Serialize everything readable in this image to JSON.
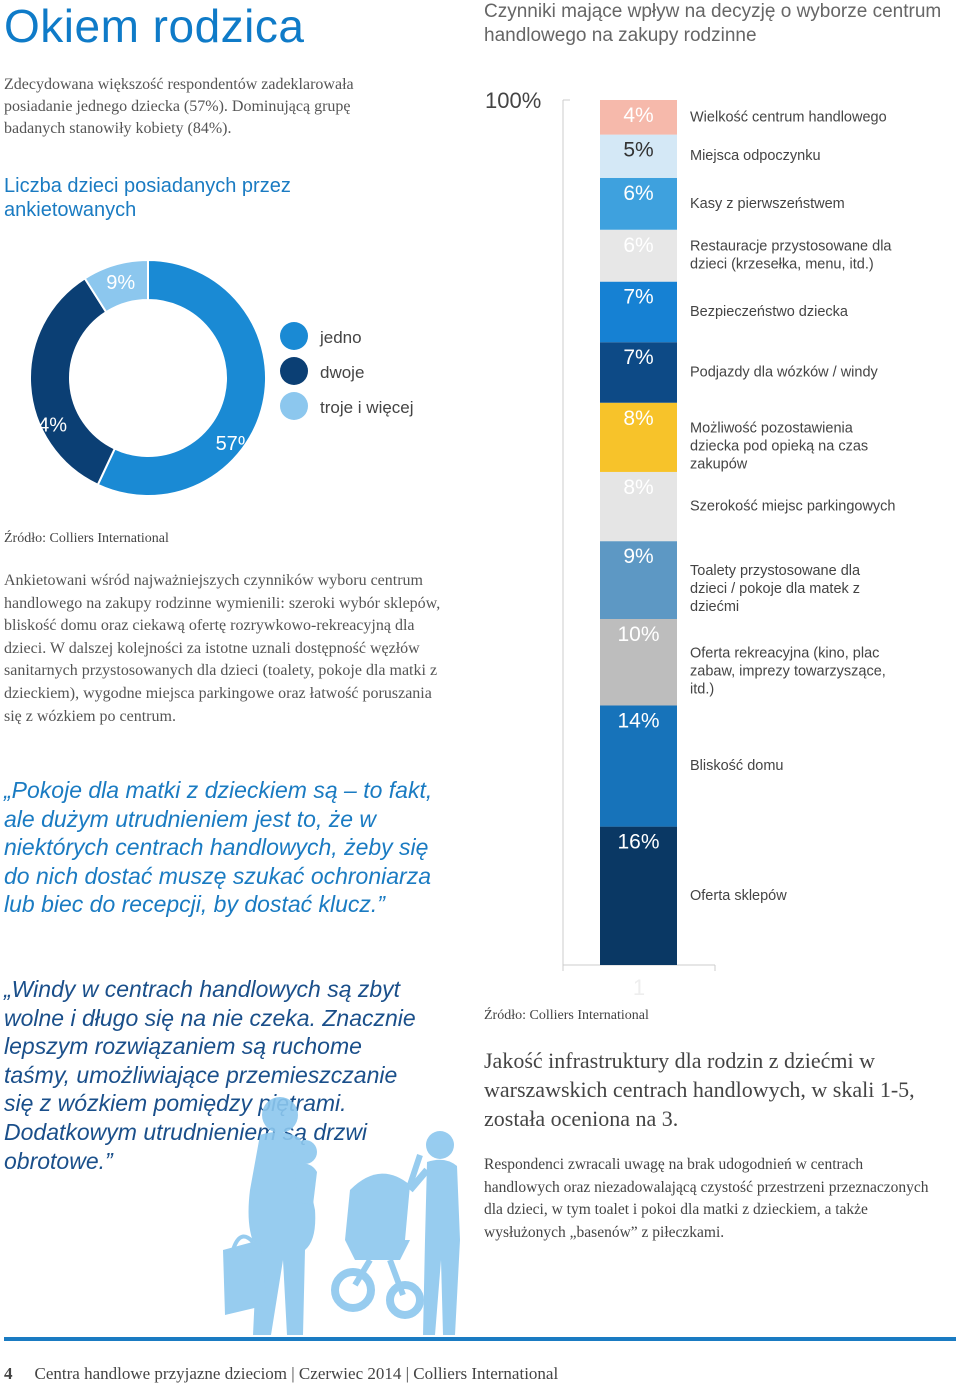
{
  "page": {
    "title": "Okiem rodzica",
    "intro": "Zdecydowana większość respondentów zadeklarowała posiadanie jednego dziecka (57%). Dominującą grupę badanych stanowiły kobiety (84%).",
    "source_left": "Źródło: Colliers International",
    "body_left": "Ankietowani wśród najważniejszych czynników wyboru centrum handlowego na zakupy rodzinne wymienili: szeroki wybór sklepów, bliskość domu oraz ciekawą ofertę rozrywkowo-rekreacyjną dla dzieci. W dalszej kolejności za istotne uznali dostępność węzłów sanitarnych przystosowanych dla dzieci (toalety, pokoje dla matki z dzieckiem), wygodne miejsca parkingowe oraz łatwość poruszania się z wózkiem po centrum.",
    "quote1": "„Pokoje dla matki z dzieckiem są – to fakt, ale dużym utrudnieniem jest to, że w niektórych centrach handlowych, żeby się do nich dostać muszę szukać ochroniarza lub biec do recepcji, by dostać klucz.”",
    "quote2": "„Windy w centrach handlowych są zbyt wolne i długo się na nie czeka. Znacznie lepszym rozwiązaniem są ruchome taśmy, umożliwiające przemieszczanie się z wózkiem pomiędzy piętrami. Dodatkowym utrudnieniem są drzwi obrotowe.”",
    "source_right": "Źródło: Colliers International",
    "rating_text": "Jakość infrastruktury dla rodzin z dziećmi w warszawskich centrach handlowych, w skali 1-5, została oceniona na 3.",
    "body_right": "Respondenci zwracali uwagę na brak udogodnień w centrach handlowych oraz niezadowalającą czystość przestrzeni przeznaczonych dla dzieci, w tym toalet i pokoi dla matki z dzieckiem, a także wysłużonych „basenów” z piłeczkami.",
    "footer": {
      "page_number": "4",
      "text": "Centra handlowe przyjazne dzieciom | Czerwiec 2014 | Colliers International"
    }
  },
  "chart_data": [
    {
      "type": "pie",
      "title": "Liczba dzieci posiadanych przez ankietowanych",
      "legend_position": "right",
      "series": [
        {
          "name": "jedno",
          "value": 57,
          "label": "57%",
          "color": "#1a8ad4"
        },
        {
          "name": "dwoje",
          "value": 34,
          "label": "34%",
          "color": "#0b3f74"
        },
        {
          "name": "troje i więcej",
          "value": 9,
          "label": "9%",
          "color": "#8cc7ee"
        }
      ]
    },
    {
      "type": "bar",
      "stacked": true,
      "title": "Czynniki mające wpływ na decyzję o wyborze centrum handlowego na zakupy rodzinne",
      "ylim": [
        0,
        100
      ],
      "y_tick_top": "100%",
      "x_tick": "1",
      "series": [
        {
          "name": "Oferta sklepów",
          "value": 16,
          "label": "16%",
          "color": "#0a3864"
        },
        {
          "name": "Bliskość domu",
          "value": 14,
          "label": "14%",
          "color": "#1773ba"
        },
        {
          "name": "Oferta rekreacyjna (kino, plac zabaw, imprezy towarzyszące, itd.)",
          "value": 10,
          "label": "10%",
          "color": "#bdbdbd"
        },
        {
          "name": "Toalety przystosowane dla dzieci / pokoje dla matek z dziećmi",
          "value": 9,
          "label": "9%",
          "color": "#5d98c4"
        },
        {
          "name": "Szerokość miejsc parkingowych",
          "value": 8,
          "label": "8%",
          "color": "#e5e5e5"
        },
        {
          "name": "Możliwość pozostawienia dziecka pod opieką na czas zakupów",
          "value": 8,
          "label": "8%",
          "color": "#f7c32a"
        },
        {
          "name": "Podjazdy dla wózków / windy",
          "value": 7,
          "label": "7%",
          "color": "#0d4a86"
        },
        {
          "name": "Bezpieczeństwo dziecka",
          "value": 7,
          "label": "7%",
          "color": "#1681d3"
        },
        {
          "name": "Restauracje przystosowane dla dzieci (krzesełka, menu, itd.)",
          "value": 6,
          "label": "6%",
          "color": "#e7e7e7"
        },
        {
          "name": "Kasy z pierwszeństwem",
          "value": 6,
          "label": "6%",
          "color": "#3ea1de"
        },
        {
          "name": "Miejsca odpoczynku",
          "value": 5,
          "label": "5%",
          "color": "#d4e8f6"
        },
        {
          "name": "Wielkość centrum handlowego",
          "value": 4,
          "label": "4%",
          "color": "#f6b9ab"
        }
      ]
    }
  ]
}
